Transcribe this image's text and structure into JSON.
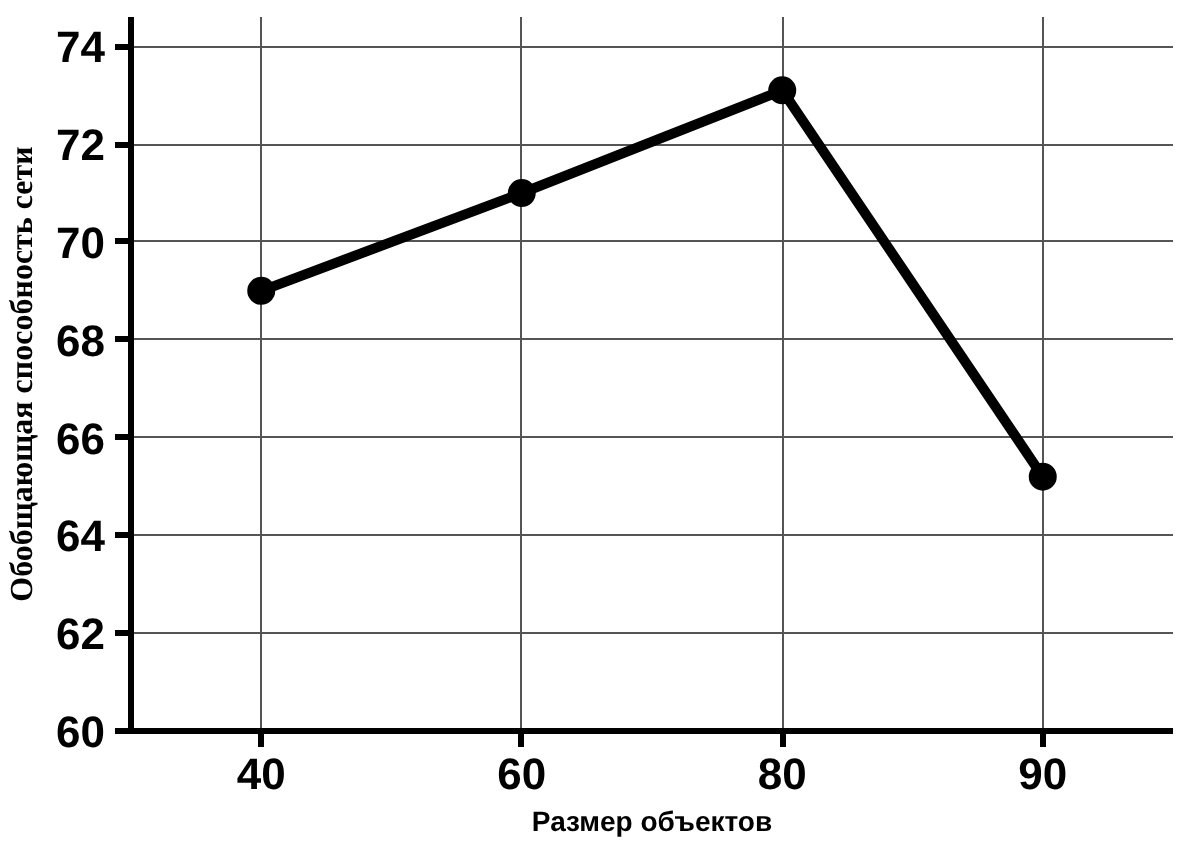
{
  "chart_data": {
    "type": "line",
    "xlabel": "Размер объектов",
    "ylabel": "Обобщающая способность сети",
    "categories": [
      "40",
      "60",
      "80",
      "90"
    ],
    "series": [
      {
        "color": "#000000",
        "values": [
          69.0,
          71.0,
          73.1,
          65.2
        ]
      }
    ],
    "ylim": [
      60,
      74.6
    ],
    "yticks": [
      60,
      62,
      64,
      66,
      68,
      70,
      72,
      74
    ],
    "grid": true,
    "marker": "circle",
    "line_style": "solid"
  }
}
